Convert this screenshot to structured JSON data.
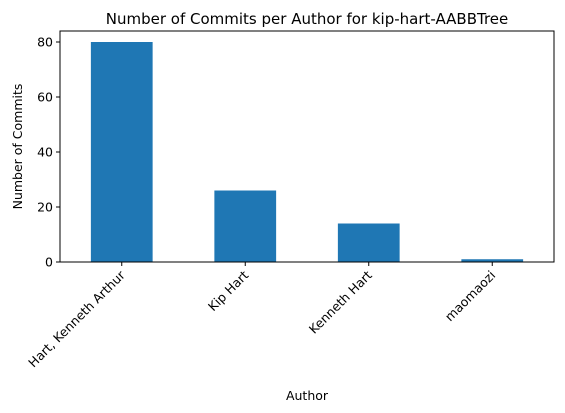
{
  "chart_data": {
    "type": "bar",
    "title": "Number of Commits per Author for kip-hart-AABBTree",
    "xlabel": "Author",
    "ylabel": "Number of Commits",
    "categories": [
      "Hart, Kenneth Arthur",
      "Kip Hart",
      "Kenneth Hart",
      "maomaozi"
    ],
    "values": [
      80,
      26,
      14,
      1
    ],
    "ylim": [
      0,
      84
    ],
    "yticks": [
      0,
      20,
      40,
      60,
      80
    ],
    "bar_color": "#1f77b4",
    "grid": false,
    "legend": "none"
  }
}
